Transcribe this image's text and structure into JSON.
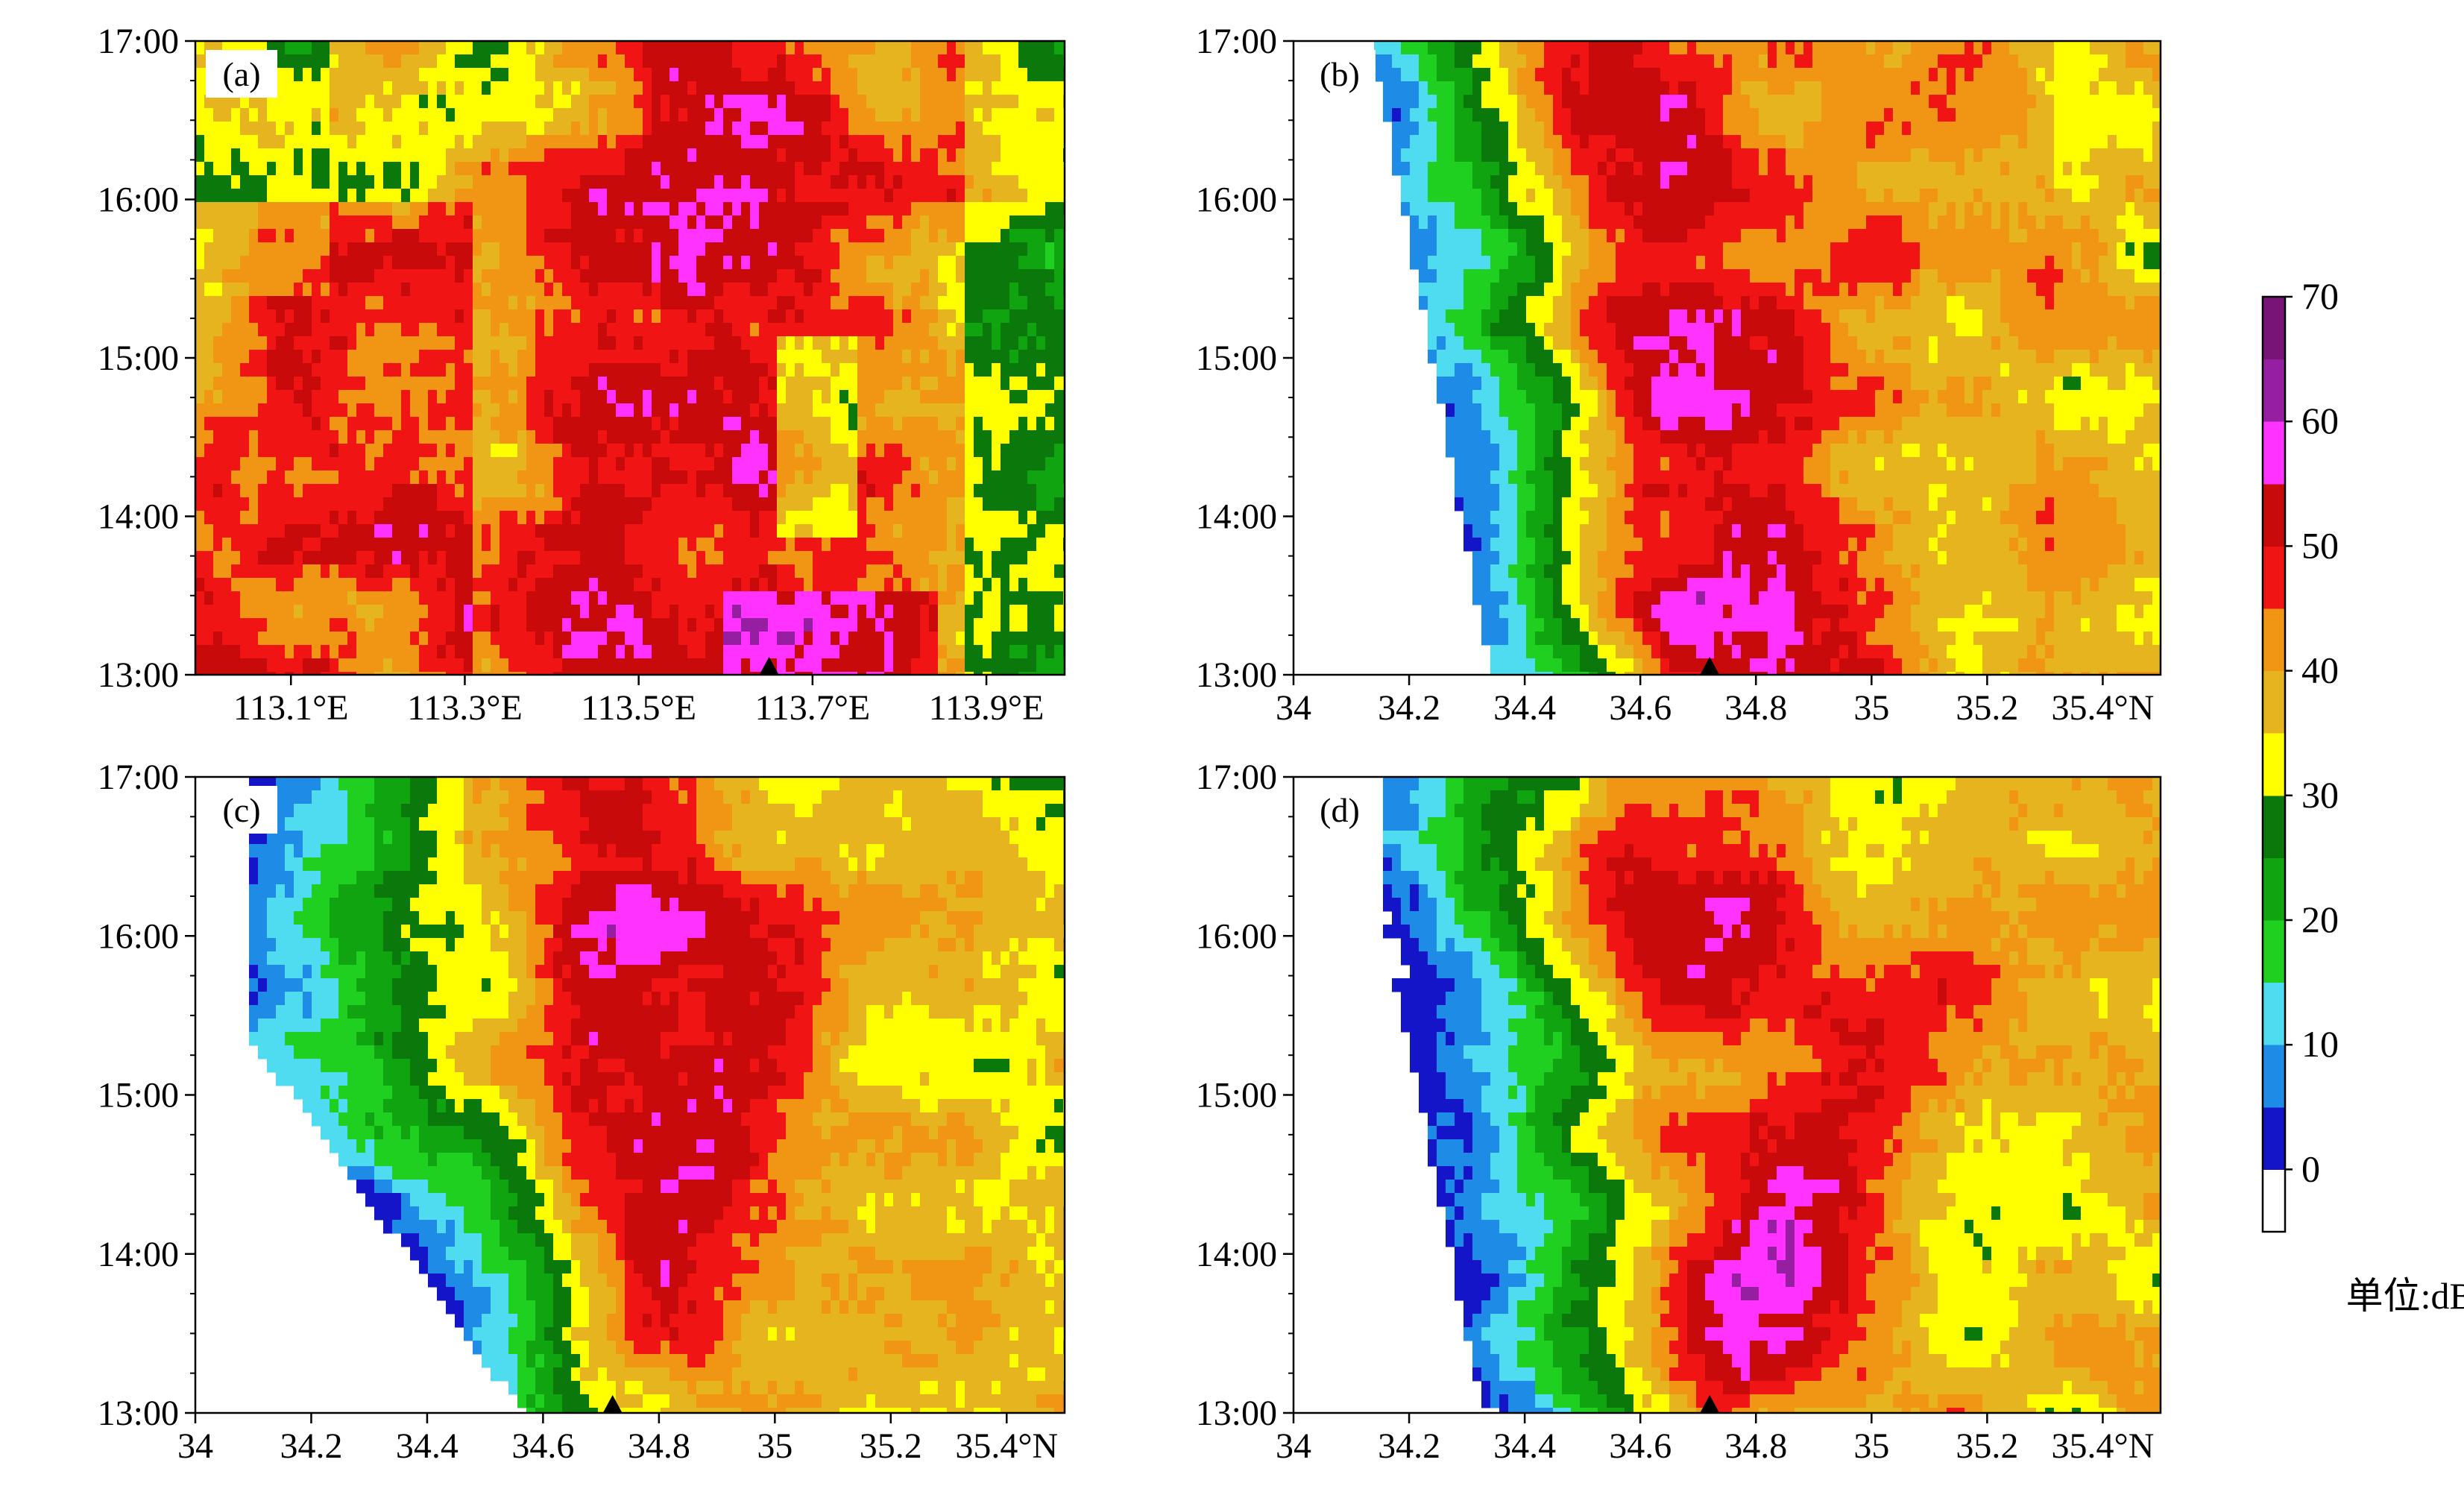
{
  "figure": {
    "unit_label": "单位:dBZ"
  },
  "colorbar": {
    "tick_labels": [
      "70",
      "60",
      "50",
      "40",
      "30",
      "20",
      "10",
      "0"
    ],
    "tick_values": [
      70,
      60,
      50,
      40,
      30,
      20,
      10,
      0
    ],
    "levels": [
      -5,
      0,
      5,
      10,
      15,
      20,
      25,
      30,
      35,
      40,
      45,
      50,
      55,
      60,
      65,
      70
    ],
    "colors": [
      "#ffffff",
      "#1414c8",
      "#1e8ce6",
      "#50dcf0",
      "#20d020",
      "#10a410",
      "#0a780a",
      "#ffff00",
      "#e6b41e",
      "#f09614",
      "#f01414",
      "#c80a0a",
      "#ff32ff",
      "#961ea0",
      "#781478"
    ]
  },
  "chart_data": [
    {
      "type": "heatmap",
      "panel_label": "(a)",
      "xlabel": "",
      "ylabel": "",
      "x_tick_labels": [
        "113.1°E",
        "113.3°E",
        "113.5°E",
        "113.7°E",
        "113.9°E"
      ],
      "x_tick_values": [
        113.1,
        113.3,
        113.5,
        113.7,
        113.9
      ],
      "xlim": [
        112.99,
        113.99
      ],
      "y_tick_labels": [
        "13:00",
        "14:00",
        "15:00",
        "16:00",
        "17:00"
      ],
      "y_tick_values": [
        13,
        14,
        15,
        16,
        17
      ],
      "ylim": [
        13,
        17
      ],
      "marker_x": 113.65,
      "grid": false
    },
    {
      "type": "heatmap",
      "panel_label": "(b)",
      "xlabel": "",
      "ylabel": "",
      "x_tick_labels": [
        "34",
        "34.2",
        "34.4",
        "34.6",
        "34.8",
        "35",
        "35.2",
        "35.4°N"
      ],
      "x_tick_values": [
        34.0,
        34.2,
        34.4,
        34.6,
        34.8,
        35.0,
        35.2,
        35.4
      ],
      "xlim": [
        34.0,
        35.5
      ],
      "y_tick_labels": [
        "13:00",
        "14:00",
        "15:00",
        "16:00",
        "17:00"
      ],
      "y_tick_values": [
        13,
        14,
        15,
        16,
        17
      ],
      "ylim": [
        13,
        17
      ],
      "marker_x": 34.72,
      "grid": false
    },
    {
      "type": "heatmap",
      "panel_label": "(c)",
      "xlabel": "",
      "ylabel": "",
      "x_tick_labels": [
        "34",
        "34.2",
        "34.4",
        "34.6",
        "34.8",
        "35",
        "35.2",
        "35.4°N"
      ],
      "x_tick_values": [
        34.0,
        34.2,
        34.4,
        34.6,
        34.8,
        35.0,
        35.2,
        35.4
      ],
      "xlim": [
        34.0,
        35.5
      ],
      "y_tick_labels": [
        "13:00",
        "14:00",
        "15:00",
        "16:00",
        "17:00"
      ],
      "y_tick_values": [
        13,
        14,
        15,
        16,
        17
      ],
      "ylim": [
        13,
        17
      ],
      "marker_x": 34.72,
      "grid": false
    },
    {
      "type": "heatmap",
      "panel_label": "(d)",
      "xlabel": "",
      "ylabel": "",
      "x_tick_labels": [
        "34",
        "34.2",
        "34.4",
        "34.6",
        "34.8",
        "35",
        "35.2",
        "35.4°N"
      ],
      "x_tick_values": [
        34.0,
        34.2,
        34.4,
        34.6,
        34.8,
        35.0,
        35.2,
        35.4
      ],
      "xlim": [
        34.0,
        35.5
      ],
      "y_tick_labels": [
        "13:00",
        "14:00",
        "15:00",
        "16:00",
        "17:00"
      ],
      "y_tick_values": [
        13,
        14,
        15,
        16,
        17
      ],
      "ylim": [
        13,
        17
      ],
      "marker_x": 34.72,
      "grid": false
    }
  ]
}
